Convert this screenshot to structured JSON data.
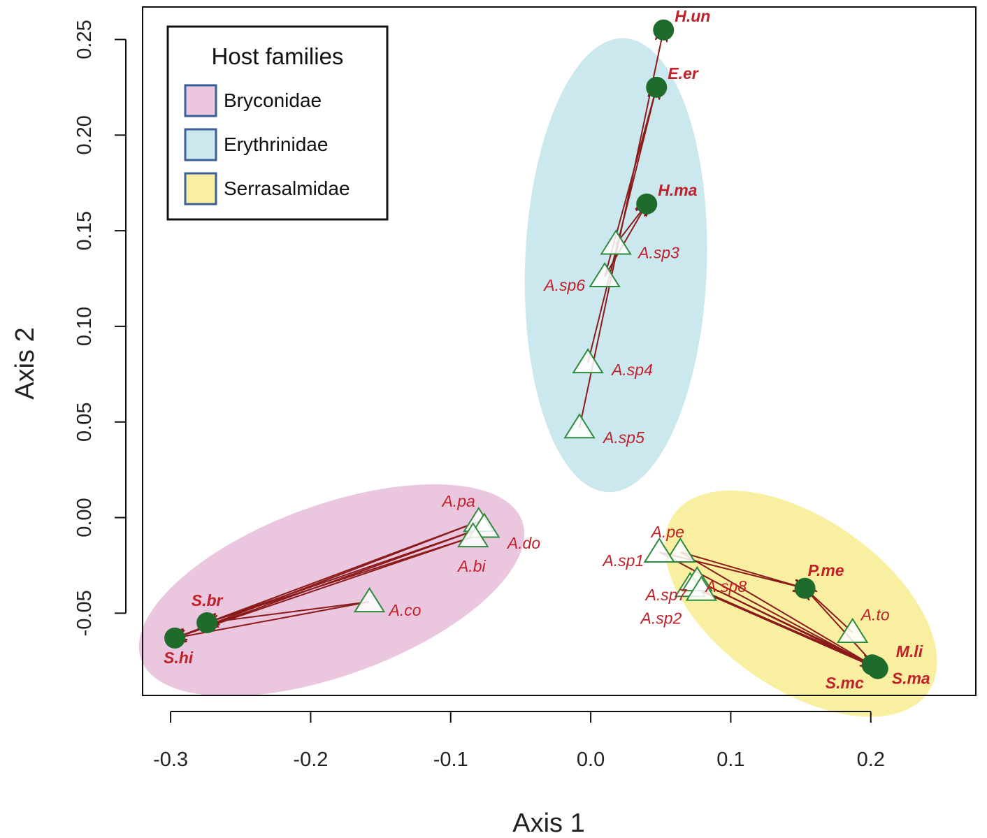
{
  "chart_data": {
    "type": "scatter",
    "xlabel": "Axis 1",
    "ylabel": "Axis 2",
    "xlim": [
      -0.32,
      0.275
    ],
    "ylim": [
      -0.093,
      0.267
    ],
    "x_ticks": [
      "-0.3",
      "-0.2",
      "-0.1",
      "0.0",
      "0.1",
      "0.2"
    ],
    "y_ticks": [
      "-0.05",
      "0.00",
      "0.05",
      "0.10",
      "0.15",
      "0.20",
      "0.25"
    ],
    "grid": false,
    "colors": {
      "host_point": "#1f6b2c",
      "parasite_triangle": "#2e8b3d",
      "arrow": "#8b1a1a",
      "label": "#c0202a"
    },
    "legend": {
      "title": "Host families",
      "position": "top-left",
      "items": [
        {
          "label": "Bryconidae",
          "color": "#ebc6df"
        },
        {
          "label": "Erythrinidae",
          "color": "#cce8ef"
        },
        {
          "label": "Serrasalmidae",
          "color": "#f8f0a0"
        }
      ]
    },
    "ellipses": [
      {
        "family": "Bryconidae",
        "cx": -0.185,
        "cy": -0.038,
        "color": "#ebc6df"
      },
      {
        "family": "Erythrinidae",
        "cx": 0.018,
        "cy": 0.132,
        "color": "#cce8ef"
      },
      {
        "family": "Serrasalmidae",
        "cx": 0.15,
        "cy": -0.045,
        "color": "#f8f0a0"
      }
    ],
    "hosts": [
      {
        "label": "H.un",
        "x": 0.052,
        "y": 0.255
      },
      {
        "label": "E.er",
        "x": 0.047,
        "y": 0.225
      },
      {
        "label": "H.ma",
        "x": 0.04,
        "y": 0.164
      },
      {
        "label": "S.br",
        "x": -0.274,
        "y": -0.055
      },
      {
        "label": "S.hi",
        "x": -0.297,
        "y": -0.063
      },
      {
        "label": "P.me",
        "x": 0.153,
        "y": -0.037
      },
      {
        "label": "M.li",
        "x": 0.204,
        "y": -0.078
      },
      {
        "label": "S.mc",
        "x": 0.201,
        "y": -0.077
      },
      {
        "label": "S.ma",
        "x": 0.205,
        "y": -0.079
      }
    ],
    "parasites": [
      {
        "label": "A.sp3",
        "x": 0.018,
        "y": 0.143
      },
      {
        "label": "A.sp6",
        "x": 0.01,
        "y": 0.126
      },
      {
        "label": "A.sp4",
        "x": -0.002,
        "y": 0.081
      },
      {
        "label": "A.sp5",
        "x": -0.008,
        "y": 0.047
      },
      {
        "label": "A.pa",
        "x": -0.08,
        "y": -0.002
      },
      {
        "label": "A.do",
        "x": -0.076,
        "y": -0.005
      },
      {
        "label": "A.bi",
        "x": -0.084,
        "y": -0.01
      },
      {
        "label": "A.co",
        "x": -0.158,
        "y": -0.044
      },
      {
        "label": "A.pe",
        "x": 0.064,
        "y": -0.018
      },
      {
        "label": "A.sp1",
        "x": 0.049,
        "y": -0.018
      },
      {
        "label": "A.sp7",
        "x": 0.071,
        "y": -0.036
      },
      {
        "label": "A.sp8",
        "x": 0.076,
        "y": -0.033
      },
      {
        "label": "A.sp2",
        "x": 0.079,
        "y": -0.038
      },
      {
        "label": "A.to",
        "x": 0.187,
        "y": -0.06
      }
    ],
    "links": [
      {
        "from": "A.sp5",
        "to": "H.un"
      },
      {
        "from": "A.sp4",
        "to": "E.er"
      },
      {
        "from": "A.sp6",
        "to": "E.er"
      },
      {
        "from": "A.sp3",
        "to": "H.ma"
      },
      {
        "from": "A.sp6",
        "to": "H.ma"
      },
      {
        "from": "A.pa",
        "to": "S.br"
      },
      {
        "from": "A.do",
        "to": "S.br"
      },
      {
        "from": "A.bi",
        "to": "S.br"
      },
      {
        "from": "A.pa",
        "to": "S.hi"
      },
      {
        "from": "A.do",
        "to": "S.hi"
      },
      {
        "from": "A.bi",
        "to": "S.hi"
      },
      {
        "from": "A.co",
        "to": "S.hi"
      },
      {
        "from": "A.co",
        "to": "S.br"
      },
      {
        "from": "A.pe",
        "to": "P.me"
      },
      {
        "from": "A.sp1",
        "to": "P.me"
      },
      {
        "from": "A.to",
        "to": "P.me"
      },
      {
        "from": "A.sp1",
        "to": "S.ma"
      },
      {
        "from": "A.pe",
        "to": "S.ma"
      },
      {
        "from": "A.sp7",
        "to": "S.ma"
      },
      {
        "from": "A.sp8",
        "to": "S.ma"
      },
      {
        "from": "A.sp2",
        "to": "S.ma"
      },
      {
        "from": "A.sp7",
        "to": "M.li"
      },
      {
        "from": "A.sp8",
        "to": "M.li"
      },
      {
        "from": "A.sp2",
        "to": "S.mc"
      },
      {
        "from": "P.me",
        "to": "S.ma"
      }
    ]
  }
}
